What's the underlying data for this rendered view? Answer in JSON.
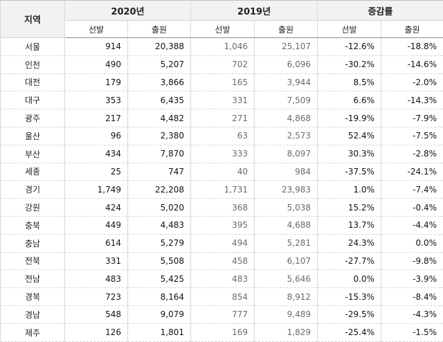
{
  "header": {
    "region": "지역",
    "groups": [
      "2020년",
      "2019년",
      "증감률"
    ],
    "sub": [
      "선발",
      "출원",
      "선발",
      "출원",
      "선발",
      "출원"
    ]
  },
  "rows": [
    {
      "region": "서울",
      "v": [
        "914",
        "20,388",
        "1,046",
        "25,107",
        "-12.6%",
        "-18.8%"
      ]
    },
    {
      "region": "인천",
      "v": [
        "490",
        "5,207",
        "702",
        "6,096",
        "-30.2%",
        "-14.6%"
      ]
    },
    {
      "region": "대전",
      "v": [
        "179",
        "3,866",
        "165",
        "3,944",
        "8.5%",
        "-2.0%"
      ]
    },
    {
      "region": "대구",
      "v": [
        "353",
        "6,435",
        "331",
        "7,509",
        "6.6%",
        "-14.3%"
      ]
    },
    {
      "region": "광주",
      "v": [
        "217",
        "4,482",
        "271",
        "4,868",
        "-19.9%",
        "-7.9%"
      ]
    },
    {
      "region": "울산",
      "v": [
        "96",
        "2,380",
        "63",
        "2,573",
        "52.4%",
        "-7.5%"
      ]
    },
    {
      "region": "부산",
      "v": [
        "434",
        "7,870",
        "333",
        "8,097",
        "30.3%",
        "-2.8%"
      ]
    },
    {
      "region": "세종",
      "v": [
        "25",
        "747",
        "40",
        "984",
        "-37.5%",
        "-24.1%"
      ]
    },
    {
      "region": "경기",
      "v": [
        "1,749",
        "22,208",
        "1,731",
        "23,983",
        "1.0%",
        "-7.4%"
      ]
    },
    {
      "region": "강원",
      "v": [
        "424",
        "5,020",
        "368",
        "5,038",
        "15.2%",
        "-0.4%"
      ]
    },
    {
      "region": "충북",
      "v": [
        "449",
        "4,483",
        "395",
        "4,688",
        "13.7%",
        "-4.4%"
      ]
    },
    {
      "region": "충남",
      "v": [
        "614",
        "5,279",
        "494",
        "5,281",
        "24.3%",
        "0.0%"
      ]
    },
    {
      "region": "전북",
      "v": [
        "331",
        "5,508",
        "458",
        "6,107",
        "-27.7%",
        "-9.8%"
      ]
    },
    {
      "region": "전남",
      "v": [
        "483",
        "5,425",
        "483",
        "5,646",
        "0.0%",
        "-3.9%"
      ]
    },
    {
      "region": "경북",
      "v": [
        "723",
        "8,164",
        "854",
        "8,912",
        "-15.3%",
        "-8.4%"
      ]
    },
    {
      "region": "경남",
      "v": [
        "548",
        "9,079",
        "777",
        "9,489",
        "-29.5%",
        "-4.3%"
      ]
    },
    {
      "region": "제주",
      "v": [
        "126",
        "1,801",
        "169",
        "1,829",
        "-25.4%",
        "-1.5%"
      ]
    }
  ]
}
